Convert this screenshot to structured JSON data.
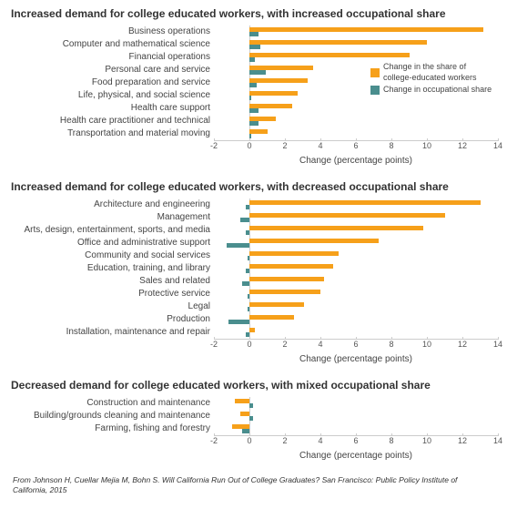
{
  "colors": {
    "series_orange": "#f6a01a",
    "series_teal": "#4a8e8e",
    "axis_line": "#cccccc",
    "text": "#333333",
    "background": "#ffffff"
  },
  "axis": {
    "xmin": -2,
    "xmax": 14,
    "tick_step": 2,
    "ticks": [
      -2,
      0,
      2,
      4,
      6,
      8,
      10,
      12,
      14
    ],
    "label": "Change (percentage points)",
    "label_fontsize": 10,
    "tick_fontsize": 9,
    "category_fontsize": 10
  },
  "legend": {
    "items": [
      {
        "label": "Change in the share of college-educated workers",
        "color": "#f6a01a"
      },
      {
        "label": "Change in occupational share",
        "color": "#4a8e8e"
      }
    ],
    "fontsize": 9
  },
  "panels": [
    {
      "title": "Increased demand for college educated workers, with increased occupational share",
      "title_fontsize": 12,
      "title_weight": "bold",
      "show_legend": true,
      "rows": [
        {
          "label": "Business operations",
          "orange": 13.2,
          "teal": 0.5
        },
        {
          "label": "Computer and mathematical science",
          "orange": 10.0,
          "teal": 0.6
        },
        {
          "label": "Financial operations",
          "orange": 9.0,
          "teal": 0.3
        },
        {
          "label": "Personal care and service",
          "orange": 3.6,
          "teal": 0.9
        },
        {
          "label": "Food preparation and service",
          "orange": 3.3,
          "teal": 0.4
        },
        {
          "label": "Life, physical, and social science",
          "orange": 2.7,
          "teal": 0.1
        },
        {
          "label": "Health care support",
          "orange": 2.4,
          "teal": 0.5
        },
        {
          "label": "Health care practitioner and technical",
          "orange": 1.5,
          "teal": 0.5
        },
        {
          "label": "Transportation and material moving",
          "orange": 1.0,
          "teal": 0.1
        }
      ]
    },
    {
      "title": "Increased demand for college educated workers, with decreased occupational share",
      "title_fontsize": 12,
      "title_weight": "bold",
      "show_legend": false,
      "rows": [
        {
          "label": "Architecture and engineering",
          "orange": 13.0,
          "teal": -0.2
        },
        {
          "label": "Management",
          "orange": 11.0,
          "teal": -0.5
        },
        {
          "label": "Arts, design, entertainment, sports, and media",
          "orange": 9.8,
          "teal": -0.2
        },
        {
          "label": "Office and administrative support",
          "orange": 7.3,
          "teal": -1.3
        },
        {
          "label": "Community and social services",
          "orange": 5.0,
          "teal": -0.1
        },
        {
          "label": "Education, training, and library",
          "orange": 4.7,
          "teal": -0.2
        },
        {
          "label": "Sales and related",
          "orange": 4.2,
          "teal": -0.4
        },
        {
          "label": "Protective service",
          "orange": 4.0,
          "teal": -0.1
        },
        {
          "label": "Legal",
          "orange": 3.1,
          "teal": -0.1
        },
        {
          "label": "Production",
          "orange": 2.5,
          "teal": -1.2
        },
        {
          "label": "Installation, maintenance and repair",
          "orange": 0.3,
          "teal": -0.2
        }
      ]
    },
    {
      "title": "Decreased demand for college educated workers, with mixed occupational share",
      "title_fontsize": 12,
      "title_weight": "bold",
      "show_legend": false,
      "rows": [
        {
          "label": "Construction and maintenance",
          "orange": -0.8,
          "teal": 0.2
        },
        {
          "label": "Building/grounds cleaning and maintenance",
          "orange": -0.5,
          "teal": 0.2
        },
        {
          "label": "Farming, fishing and forestry",
          "orange": -1.0,
          "teal": -0.4
        }
      ]
    }
  ],
  "citation": "From Johnson H, Cuellar Mejia M, Bohn S. Will California Run Out of College Graduates? San Francisco: Public Policy Institute of California, 2015"
}
